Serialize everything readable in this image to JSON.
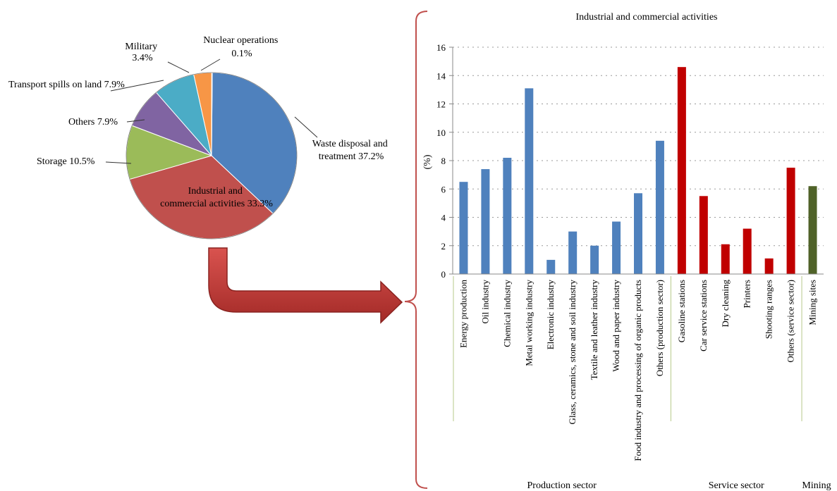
{
  "chart_data": [
    {
      "type": "pie",
      "slices": [
        {
          "label": "Waste disposal and treatment",
          "value_text": "37.2%",
          "value": 37.2,
          "color": "#4f81bd"
        },
        {
          "label": "Industrial and commercial activities",
          "value_text": "33.3%",
          "value": 33.3,
          "color": "#c0504d"
        },
        {
          "label": "Storage",
          "value_text": "10.5%",
          "value": 10.5,
          "color": "#9bbb59"
        },
        {
          "label": "Others",
          "value_text": "7.9%",
          "value": 7.9,
          "color": "#8064a2"
        },
        {
          "label": "Transport spills on land",
          "value_text": "7.9%",
          "value": 7.9,
          "color": "#4bacc6"
        },
        {
          "label": "Military",
          "value_text": "3.4%",
          "value": 3.4,
          "color": "#f79646"
        },
        {
          "label": "Nuclear operations",
          "value_text": "0.1%",
          "value": 0.1,
          "color": "#e36c0a"
        }
      ],
      "label_lines": {
        "waste": [
          "Waste disposal and",
          "treatment 37.2%"
        ],
        "industrial": [
          "Industrial and",
          "commercial activities 33.3%"
        ],
        "storage": [
          "Storage 10.5%"
        ],
        "others": [
          "Others 7.9%"
        ],
        "transport": [
          "Transport spills on land 7.9%"
        ],
        "military": [
          "Military",
          "3.4%"
        ],
        "nuclear": [
          "Nuclear operations",
          "0.1%"
        ]
      }
    },
    {
      "type": "bar",
      "title": "Industrial and commercial activities",
      "ylabel": "(%)",
      "ylim": [
        0,
        16
      ],
      "yticks": [
        0,
        2,
        4,
        6,
        8,
        10,
        12,
        14,
        16
      ],
      "grid": "dotted horizontal",
      "categories": [
        "Energy production",
        "Oil industry",
        "Chemical industry",
        "Metal working industry",
        "Electronic industry",
        "Glass, ceramics, stone and soil industry",
        "Textile and leather industry",
        "Wood and paper industry",
        "Food industry and processing of organic products",
        "Others (production sector)",
        "Gasoline stations",
        "Car service stations",
        "Dry cleaning",
        "Printers",
        "Shooting ranges",
        "Others (service sector)",
        "Mining sites"
      ],
      "values": [
        6.5,
        7.4,
        8.2,
        13.1,
        1.0,
        3.0,
        2.0,
        3.7,
        5.7,
        9.4,
        14.6,
        5.5,
        2.1,
        3.2,
        1.1,
        7.5,
        6.2
      ],
      "groups": [
        {
          "name": "Production sector",
          "from": 0,
          "to": 9,
          "color": "#4f81bd"
        },
        {
          "name": "Service sector",
          "from": 10,
          "to": 15,
          "color": "#c00000"
        },
        {
          "name": "Mining",
          "from": 16,
          "to": 16,
          "color": "#4f6228"
        }
      ]
    }
  ]
}
